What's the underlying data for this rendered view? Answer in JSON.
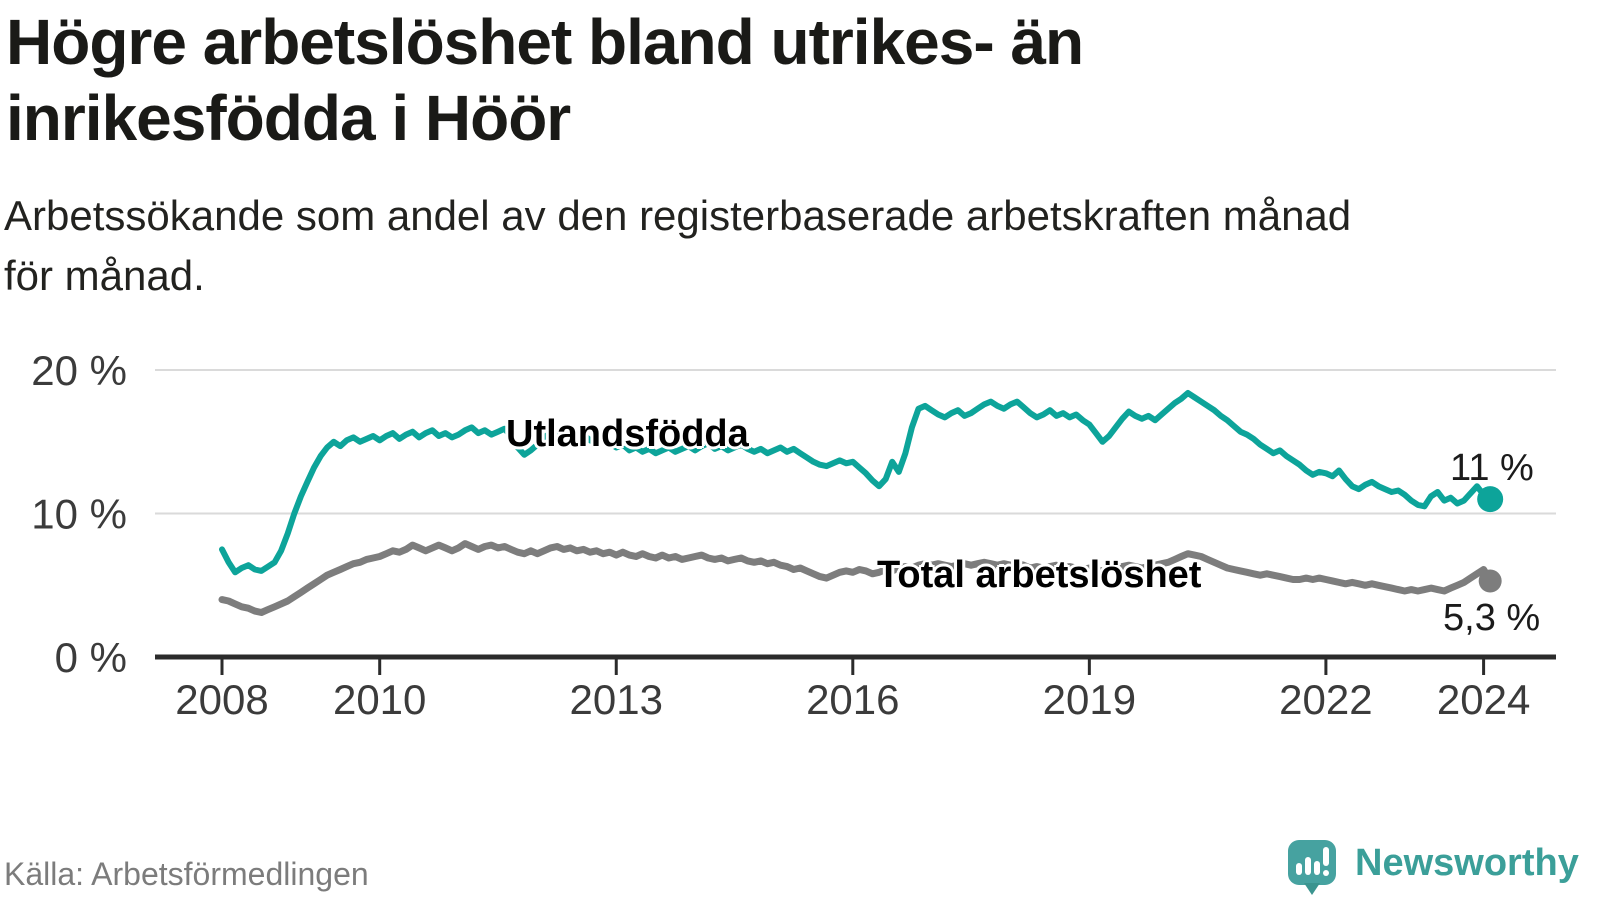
{
  "header": {
    "title_lines": [
      "Högre arbetslöshet bland utrikes- än",
      "inrikesfödda i Höör"
    ],
    "subtitle_lines": [
      "Arbetssökande som andel av den registerbaserade arbetskraften månad",
      "för månad."
    ]
  },
  "footer": {
    "source": "Källa: Arbetsförmedlingen",
    "brand_name": "Newsworthy",
    "brand_color": "#3b9f99",
    "logo_icon": "newsworthy-speech-bubble-with-bar-chart-and-exclamation",
    "logo_bubble_color": "#46a2a0",
    "logo_tail_color": "#3a948f"
  },
  "chart_data": {
    "type": "line",
    "title": "Högre arbetslöshet bland utrikes- än inrikesfödda i Höör",
    "subtitle": "Arbetssökande som andel av den registerbaserade arbetskraften månad för månad.",
    "frequency": "monthly",
    "x_start": "2008-01",
    "x_end": "2024-02",
    "grid": true,
    "grid_color": "#dadada",
    "axis_color": "#2b2b2b",
    "tick_label_color": "#3b3b3b",
    "x_axis": {
      "ticks": [
        2008,
        2010,
        2013,
        2016,
        2019,
        2022,
        2024
      ]
    },
    "y_axis": {
      "range": [
        0,
        21.5
      ],
      "ticks": [
        {
          "value": 0,
          "label": "0 %"
        },
        {
          "value": 10,
          "label": "10 %"
        },
        {
          "value": 20,
          "label": "20 %"
        }
      ]
    },
    "series": [
      {
        "name": "Utlandsfödda",
        "color": "#0da49a",
        "end_value": 11.0,
        "end_label": "11 %",
        "values": [
          7.5,
          6.6,
          5.9,
          6.2,
          6.4,
          6.1,
          6.0,
          6.3,
          6.6,
          7.4,
          8.6,
          10.0,
          11.2,
          12.2,
          13.2,
          14.0,
          14.6,
          15.0,
          14.7,
          15.1,
          15.3,
          15.0,
          15.2,
          15.4,
          15.1,
          15.4,
          15.6,
          15.2,
          15.5,
          15.7,
          15.3,
          15.6,
          15.8,
          15.4,
          15.6,
          15.3,
          15.5,
          15.8,
          16.0,
          15.6,
          15.8,
          15.5,
          15.7,
          15.9,
          15.4,
          14.6,
          14.1,
          14.4,
          14.8,
          15.3,
          15.6,
          15.4,
          15.7,
          15.5,
          15.2,
          15.5,
          15.1,
          14.9,
          15.2,
          14.9,
          14.6,
          14.8,
          14.4,
          14.6,
          14.3,
          14.5,
          14.2,
          14.4,
          14.6,
          14.3,
          14.5,
          14.7,
          14.4,
          14.7,
          14.9,
          14.5,
          14.7,
          14.4,
          14.6,
          14.8,
          14.5,
          14.3,
          14.5,
          14.2,
          14.4,
          14.6,
          14.3,
          14.5,
          14.2,
          13.9,
          13.6,
          13.4,
          13.3,
          13.5,
          13.7,
          13.5,
          13.6,
          13.2,
          12.8,
          12.3,
          11.9,
          12.4,
          13.6,
          12.9,
          14.2,
          16.0,
          17.3,
          17.5,
          17.2,
          16.9,
          16.7,
          17.0,
          17.2,
          16.8,
          17.0,
          17.3,
          17.6,
          17.8,
          17.5,
          17.3,
          17.6,
          17.8,
          17.4,
          17.0,
          16.7,
          16.9,
          17.2,
          16.8,
          17.0,
          16.7,
          16.9,
          16.5,
          16.2,
          15.6,
          15.0,
          15.4,
          16.0,
          16.6,
          17.1,
          16.8,
          16.6,
          16.8,
          16.5,
          16.9,
          17.3,
          17.7,
          18.0,
          18.4,
          18.1,
          17.8,
          17.5,
          17.2,
          16.8,
          16.5,
          16.1,
          15.7,
          15.5,
          15.2,
          14.8,
          14.5,
          14.2,
          14.4,
          14.0,
          13.7,
          13.4,
          13.0,
          12.7,
          12.9,
          12.8,
          12.6,
          13.0,
          12.4,
          11.9,
          11.7,
          12.0,
          12.2,
          11.9,
          11.7,
          11.5,
          11.6,
          11.3,
          10.9,
          10.6,
          10.5,
          11.2,
          11.5,
          10.9,
          11.1,
          10.7,
          10.9,
          11.4,
          11.9,
          11.3,
          11.0
        ]
      },
      {
        "name": "Total arbetslöshet",
        "color": "#7d7d7d",
        "end_value": 5.3,
        "end_label": "5,3 %",
        "values": [
          4.0,
          3.9,
          3.7,
          3.5,
          3.4,
          3.2,
          3.1,
          3.3,
          3.5,
          3.7,
          3.9,
          4.2,
          4.5,
          4.8,
          5.1,
          5.4,
          5.7,
          5.9,
          6.1,
          6.3,
          6.5,
          6.6,
          6.8,
          6.9,
          7.0,
          7.2,
          7.4,
          7.3,
          7.5,
          7.8,
          7.6,
          7.4,
          7.6,
          7.8,
          7.6,
          7.4,
          7.6,
          7.9,
          7.7,
          7.5,
          7.7,
          7.8,
          7.6,
          7.7,
          7.5,
          7.3,
          7.2,
          7.4,
          7.2,
          7.4,
          7.6,
          7.7,
          7.5,
          7.6,
          7.4,
          7.5,
          7.3,
          7.4,
          7.2,
          7.3,
          7.1,
          7.3,
          7.1,
          7.0,
          7.2,
          7.0,
          6.9,
          7.1,
          6.9,
          7.0,
          6.8,
          6.9,
          7.0,
          7.1,
          6.9,
          6.8,
          6.9,
          6.7,
          6.8,
          6.9,
          6.7,
          6.6,
          6.7,
          6.5,
          6.6,
          6.4,
          6.3,
          6.1,
          6.2,
          6.0,
          5.8,
          5.6,
          5.5,
          5.7,
          5.9,
          6.0,
          5.9,
          6.1,
          6.0,
          5.8,
          5.9,
          6.1,
          6.0,
          6.2,
          6.3,
          6.2,
          6.4,
          6.5,
          6.4,
          6.5,
          6.4,
          6.3,
          6.4,
          6.5,
          6.4,
          6.5,
          6.6,
          6.5,
          6.4,
          6.5,
          6.4,
          6.5,
          6.4,
          6.2,
          6.3,
          6.2,
          6.3,
          6.4,
          6.2,
          6.3,
          6.2,
          6.1,
          6.2,
          6.1,
          6.0,
          6.1,
          6.2,
          6.3,
          6.4,
          6.3,
          6.2,
          6.3,
          6.4,
          6.5,
          6.6,
          6.8,
          7.0,
          7.2,
          7.1,
          7.0,
          6.8,
          6.6,
          6.4,
          6.2,
          6.1,
          6.0,
          5.9,
          5.8,
          5.7,
          5.8,
          5.7,
          5.6,
          5.5,
          5.4,
          5.4,
          5.5,
          5.4,
          5.5,
          5.4,
          5.3,
          5.2,
          5.1,
          5.2,
          5.1,
          5.0,
          5.1,
          5.0,
          4.9,
          4.8,
          4.7,
          4.6,
          4.7,
          4.6,
          4.7,
          4.8,
          4.7,
          4.6,
          4.8,
          5.0,
          5.2,
          5.5,
          5.8,
          6.1,
          5.3
        ]
      }
    ]
  }
}
